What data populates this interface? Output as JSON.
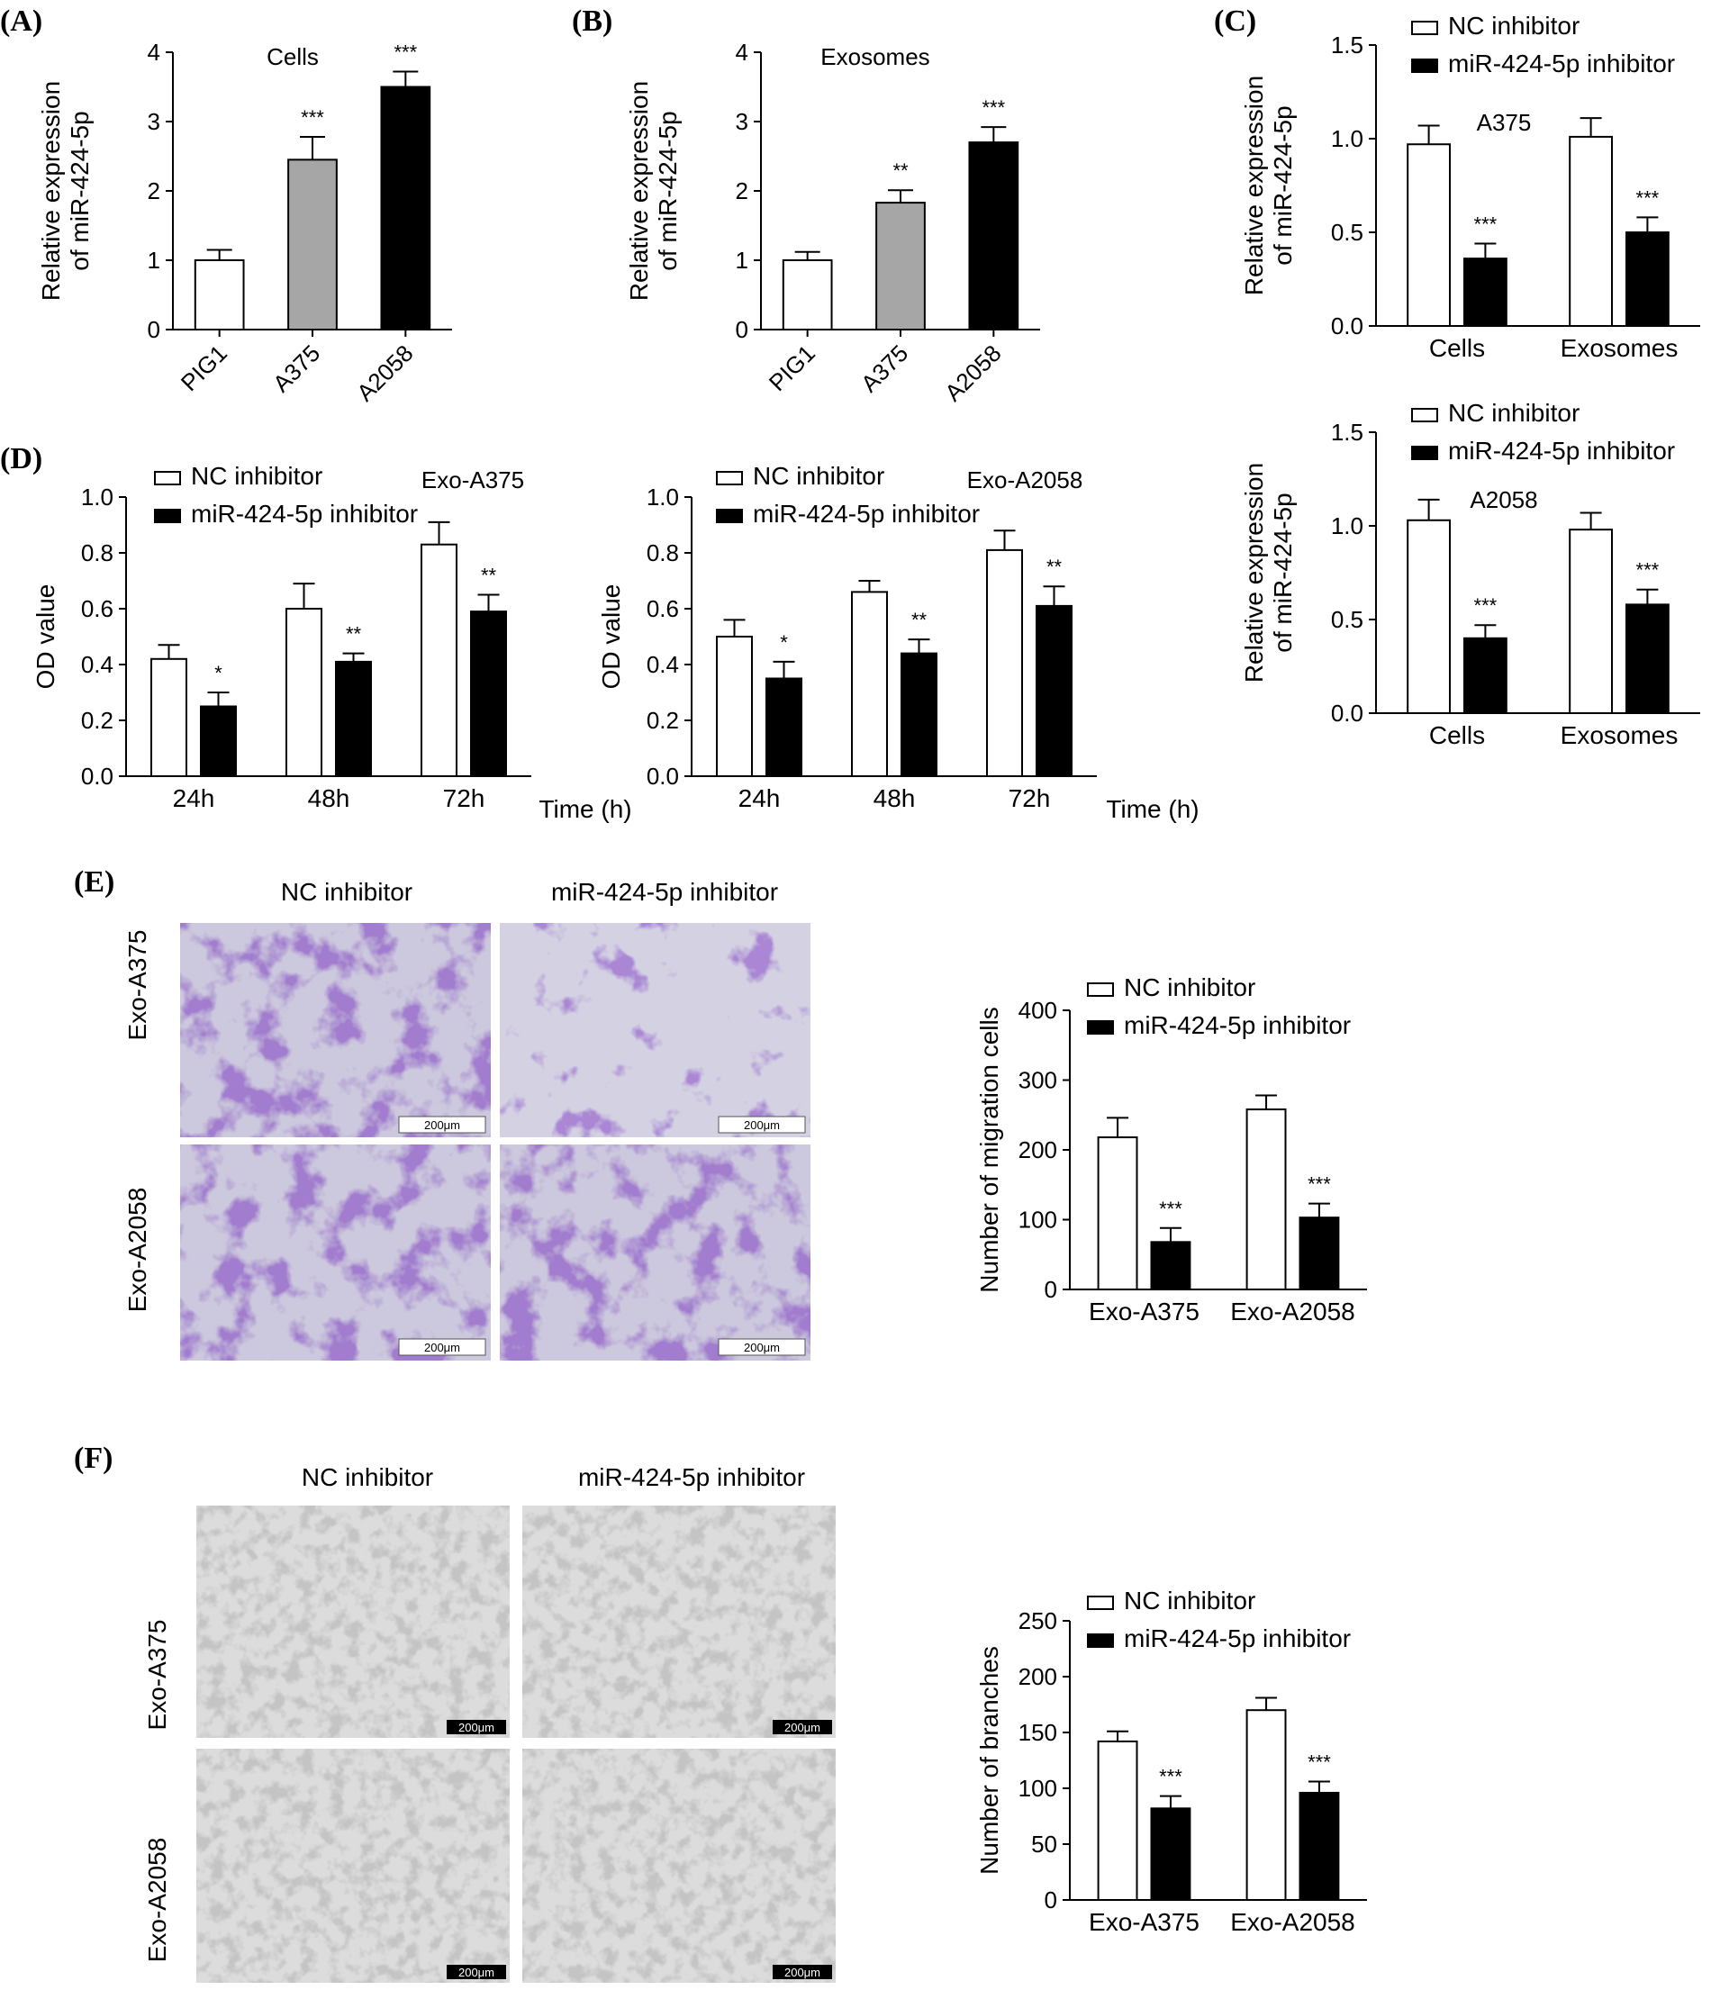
{
  "figure": {
    "panels": [
      "(A)",
      "(B)",
      "(C)",
      "(D)",
      "(E)",
      "(F)"
    ],
    "sig": {
      "one": "*",
      "two": "**",
      "three": "***"
    }
  },
  "legend": {
    "nc": "NC inhibitor",
    "mir": "miR-424-5p inhibitor"
  },
  "chart_data": [
    {
      "id": "A",
      "type": "bar",
      "categories": [
        "PIG1",
        "A375",
        "A2058"
      ],
      "values": [
        1.0,
        2.45,
        3.5
      ],
      "errors": [
        0.15,
        0.33,
        0.22
      ],
      "colors": [
        "#ffffff",
        "#a6a6a6",
        "#000000"
      ],
      "ylabel": "Relative expression\nof miR-424-5p",
      "annotation": "Cells",
      "ylim": [
        0,
        4
      ],
      "yticks": [
        "0",
        "1",
        "2",
        "3",
        "4"
      ],
      "sig": [
        "",
        "***",
        "***"
      ]
    },
    {
      "id": "B",
      "type": "bar",
      "categories": [
        "PIG1",
        "A375",
        "A2058"
      ],
      "values": [
        1.0,
        1.83,
        2.7
      ],
      "errors": [
        0.12,
        0.18,
        0.22
      ],
      "colors": [
        "#ffffff",
        "#a6a6a6",
        "#000000"
      ],
      "ylabel": "Relative expression\nof miR-424-5p",
      "annotation": "Exosomes",
      "ylim": [
        0,
        4
      ],
      "yticks": [
        "0",
        "1",
        "2",
        "3",
        "4"
      ],
      "sig": [
        "",
        "**",
        "***"
      ]
    },
    {
      "id": "C1",
      "type": "bar",
      "categories": [
        "Cells",
        "Exosomes"
      ],
      "series": [
        {
          "name": "NC inhibitor",
          "values": [
            0.97,
            1.01
          ],
          "errors": [
            0.1,
            0.1
          ]
        },
        {
          "name": "miR-424-5p inhibitor",
          "values": [
            0.36,
            0.5
          ],
          "errors": [
            0.08,
            0.08
          ]
        }
      ],
      "ylabel": "Relative expression\nof miR-424-5p",
      "annotation": "A375",
      "ylim": [
        0,
        1.5
      ],
      "yticks": [
        "0.0",
        "0.5",
        "1.0",
        "1.5"
      ],
      "sig": [
        "***",
        "***"
      ]
    },
    {
      "id": "C2",
      "type": "bar",
      "categories": [
        "Cells",
        "Exosomes"
      ],
      "series": [
        {
          "name": "NC inhibitor",
          "values": [
            1.03,
            0.98
          ],
          "errors": [
            0.11,
            0.09
          ]
        },
        {
          "name": "miR-424-5p inhibitor",
          "values": [
            0.4,
            0.58
          ],
          "errors": [
            0.07,
            0.08
          ]
        }
      ],
      "ylabel": "Relative expression\nof miR-424-5p",
      "annotation": "A2058",
      "ylim": [
        0,
        1.5
      ],
      "yticks": [
        "0.0",
        "0.5",
        "1.0",
        "1.5"
      ],
      "sig": [
        "***",
        "***"
      ]
    },
    {
      "id": "D1",
      "type": "bar",
      "categories": [
        "24h",
        "48h",
        "72h"
      ],
      "series": [
        {
          "name": "NC inhibitor",
          "values": [
            0.42,
            0.6,
            0.83
          ],
          "errors": [
            0.05,
            0.09,
            0.08
          ]
        },
        {
          "name": "miR-424-5p inhibitor",
          "values": [
            0.25,
            0.41,
            0.59
          ],
          "errors": [
            0.05,
            0.03,
            0.06
          ]
        }
      ],
      "ylabel": "OD value",
      "xlabel": "Time (h)",
      "annotation": "Exo-A375",
      "ylim": [
        0,
        1.0
      ],
      "yticks": [
        "0.0",
        "0.2",
        "0.4",
        "0.6",
        "0.8",
        "1.0"
      ],
      "sig": [
        "*",
        "**",
        "**"
      ]
    },
    {
      "id": "D2",
      "type": "bar",
      "categories": [
        "24h",
        "48h",
        "72h"
      ],
      "series": [
        {
          "name": "NC inhibitor",
          "values": [
            0.5,
            0.66,
            0.81
          ],
          "errors": [
            0.06,
            0.04,
            0.07
          ]
        },
        {
          "name": "miR-424-5p inhibitor",
          "values": [
            0.35,
            0.44,
            0.61
          ],
          "errors": [
            0.06,
            0.05,
            0.07
          ]
        }
      ],
      "ylabel": "OD value",
      "xlabel": "Time (h)",
      "annotation": "Exo-A2058",
      "ylim": [
        0,
        1.0
      ],
      "yticks": [
        "0.0",
        "0.2",
        "0.4",
        "0.6",
        "0.8",
        "1.0"
      ],
      "sig": [
        "*",
        "**",
        "**"
      ]
    },
    {
      "id": "E",
      "type": "bar",
      "categories": [
        "Exo-A375",
        "Exo-A2058"
      ],
      "series": [
        {
          "name": "NC inhibitor",
          "values": [
            218,
            258
          ],
          "errors": [
            28,
            20
          ]
        },
        {
          "name": "miR-424-5p inhibitor",
          "values": [
            68,
            103
          ],
          "errors": [
            20,
            20
          ]
        }
      ],
      "ylabel": "Number of migration cells",
      "ylim": [
        0,
        400
      ],
      "yticks": [
        "0",
        "100",
        "200",
        "300",
        "400"
      ],
      "sig": [
        "***",
        "***"
      ]
    },
    {
      "id": "F",
      "type": "bar",
      "categories": [
        "Exo-A375",
        "Exo-A2058"
      ],
      "series": [
        {
          "name": "NC inhibitor",
          "values": [
            142,
            170
          ],
          "errors": [
            9,
            11
          ]
        },
        {
          "name": "miR-424-5p inhibitor",
          "values": [
            82,
            96
          ],
          "errors": [
            11,
            10
          ]
        }
      ],
      "ylabel": "Number of branches",
      "ylim": [
        0,
        250
      ],
      "yticks": [
        "0",
        "50",
        "100",
        "150",
        "200",
        "250"
      ],
      "sig": [
        "***",
        "***"
      ]
    }
  ],
  "micrographs": {
    "E": {
      "col_labels": [
        "NC inhibitor",
        "miR-424-5p inhibitor"
      ],
      "row_labels": [
        "Exo-A375",
        "Exo-A2058"
      ],
      "scale": "200μm"
    },
    "F": {
      "col_labels": [
        "NC inhibitor",
        "miR-424-5p inhibitor"
      ],
      "row_labels": [
        "Exo-A375",
        "Exo-A2058"
      ],
      "scale": "200μm"
    }
  }
}
